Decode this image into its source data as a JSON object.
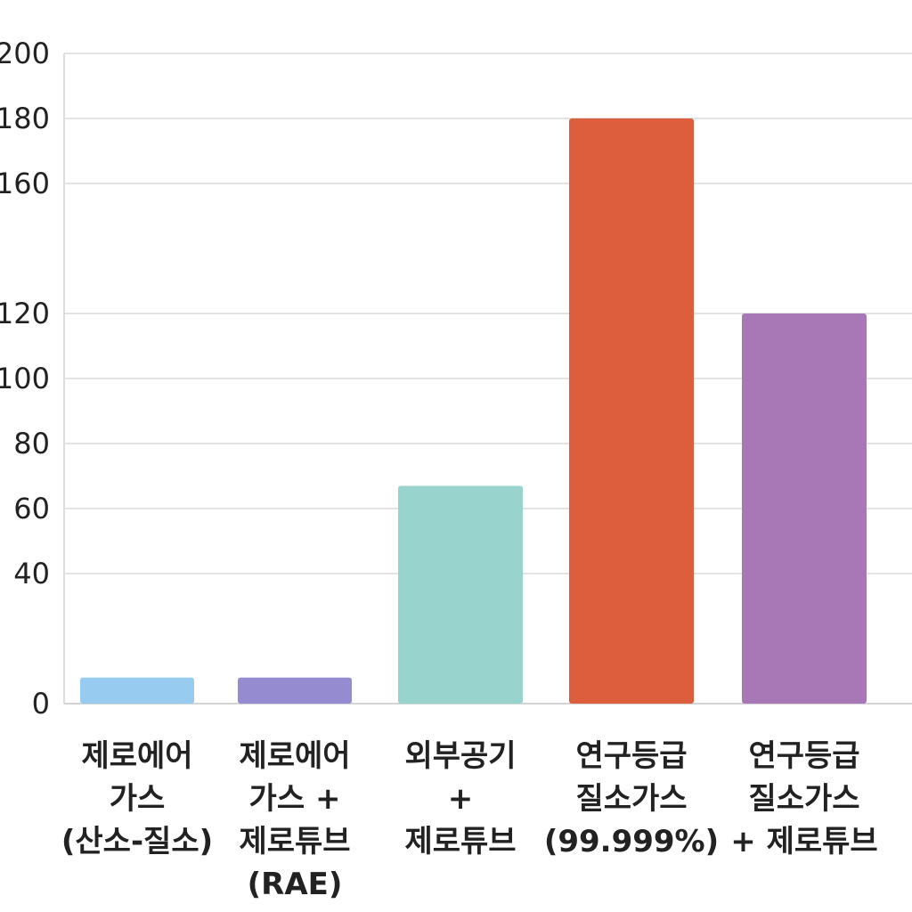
{
  "chart_data": {
    "type": "bar",
    "title": "",
    "xlabel": "",
    "ylabel": "",
    "ylim": [
      0,
      200
    ],
    "yticks": [
      0,
      40,
      60,
      80,
      100,
      120,
      160,
      180,
      200
    ],
    "ytick_labels": [
      "0",
      "40",
      "60",
      "80",
      "100",
      "120",
      "160",
      "180",
      "200"
    ],
    "grid": true,
    "legend": "none",
    "categories": [
      [
        "제로에어",
        "가스",
        "(산소-질소)"
      ],
      [
        "제로에어",
        "가스 +",
        "제로튜브",
        "(RAE)"
      ],
      [
        "외부공기",
        "+",
        "제로튜브"
      ],
      [
        "연구등급",
        "질소가스",
        "(99.999%)"
      ],
      [
        "연구등급",
        "질소가스",
        "+ 제로튜브"
      ]
    ],
    "values": [
      8,
      8,
      67,
      180,
      120
    ],
    "colors": [
      "#97cbef",
      "#958bd0",
      "#98d3ce",
      "#dc5e3d",
      "#a877b5"
    ]
  }
}
